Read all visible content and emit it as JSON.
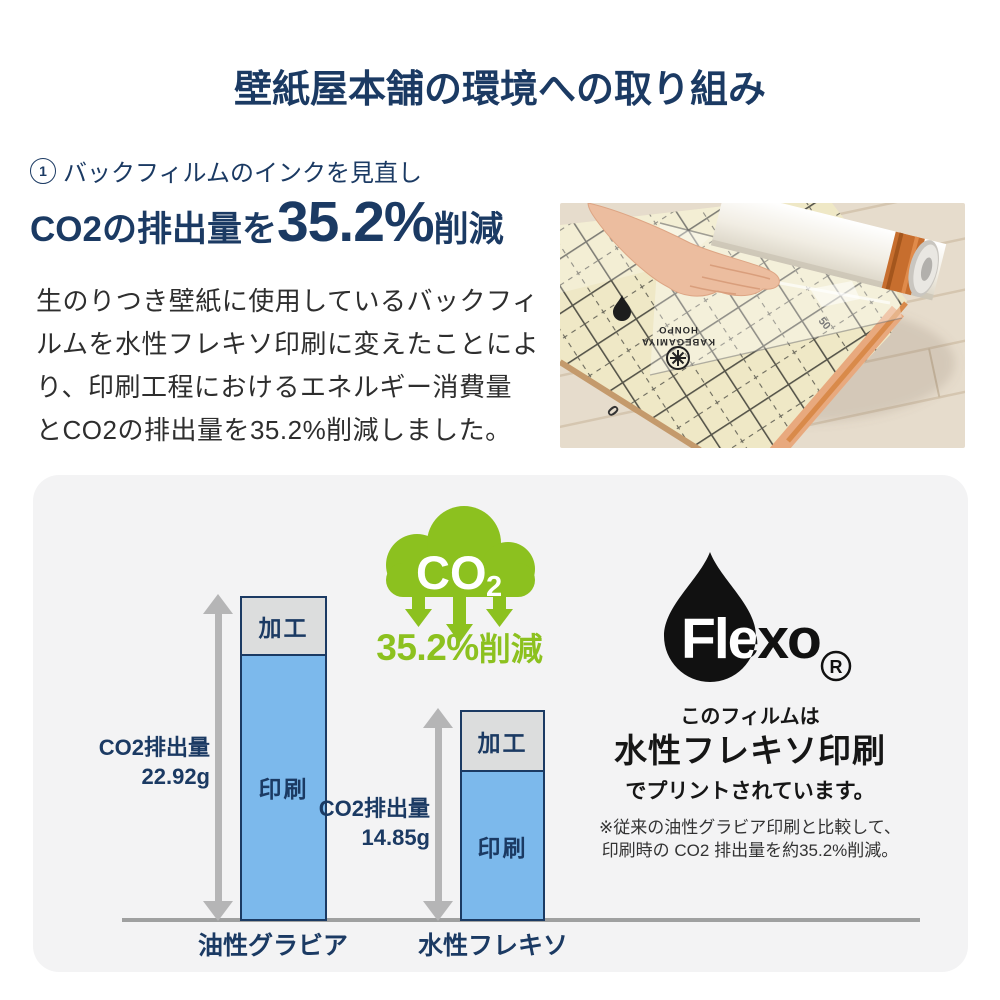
{
  "theme": {
    "navy": "#1b3a63",
    "text": "#2e2e2e",
    "green": "#8cc11f",
    "bar-blue": "#7cb9ec",
    "bar-gray": "#dcdddd",
    "bar-border": "#1b3a63",
    "axis": "#9fa0a0",
    "arrow": "#b5b5b6",
    "panel": "#f3f3f4",
    "page-bg": "#ffffff"
  },
  "header": {
    "title": "壁紙屋本舗の環境への取り組み"
  },
  "intro": {
    "heading_digit": "1",
    "heading": "バックフィルムのインクを見直し",
    "co2_prefix": "CO2の排出量を",
    "co2_value": "35.2%",
    "co2_suffix": "削減",
    "body_lines": [
      "生のりつき壁紙に使用しているバックフィ",
      "ルムを水性フレキソ印刷に変えたことによ",
      "り、印刷工程におけるエネルギー消費量",
      "とCO2の排出量を35.2%削減しました。"
    ]
  },
  "photo": {
    "film_text_line1": "KABEGAMIYA",
    "film_text_line2": "HONPO"
  },
  "chart_data": {
    "type": "bar",
    "stacked": true,
    "categories": [
      "油性グラビア",
      "水性フレキソ"
    ],
    "series": [
      {
        "name": "印刷",
        "values": [
          18.7,
          10.5
        ],
        "color": "#7cb9ec"
      },
      {
        "name": "加工",
        "values": [
          4.22,
          4.35
        ],
        "color": "#dcdddd"
      }
    ],
    "totals": [
      {
        "label": "CO2排出量",
        "value": "22.92g"
      },
      {
        "label": "CO2排出量",
        "value": "14.85g"
      }
    ],
    "unit": "g",
    "ylim": [
      0,
      24
    ],
    "grid": false,
    "cloud": {
      "main": "CO",
      "sub": "2"
    },
    "reduction": {
      "value": "35.2%",
      "suffix": "削減"
    }
  },
  "flexo": {
    "logo_text": "Flexo",
    "reg_mark": "R",
    "line1": "このフィルムは",
    "line2": "水性フレキソ印刷",
    "line3": "でプリントされています。",
    "note1": "※従来の油性グラビア印刷と比較して、",
    "note2": "印刷時の CO2 排出量を約35.2%削減。"
  }
}
